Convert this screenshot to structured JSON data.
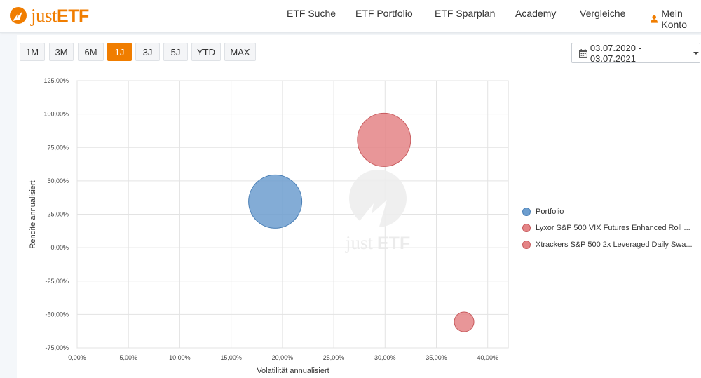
{
  "header": {
    "logo_text_light": "just",
    "logo_text_bold": "ETF",
    "nav": [
      "ETF Suche",
      "ETF Portfolio",
      "ETF Sparplan",
      "Academy",
      "Vergleiche",
      "Mein Konto"
    ]
  },
  "toolbar": {
    "periods": [
      "1M",
      "3M",
      "6M",
      "1J",
      "3J",
      "5J",
      "YTD",
      "MAX"
    ],
    "active_period": "1J",
    "date_range": "03.07.2020 - 03.07.2021"
  },
  "colors": {
    "brand": "#f07d00",
    "portfolio": "#6d9ecf",
    "etf": "#e48486"
  },
  "chart_data": {
    "type": "scatter",
    "xlabel": "Volatilität annualisiert",
    "ylabel": "Rendite annualisiert",
    "xlim": [
      0,
      42
    ],
    "ylim": [
      -75,
      125
    ],
    "x_ticks": [
      "0,00%",
      "5,00%",
      "10,00%",
      "15,00%",
      "20,00%",
      "25,00%",
      "30,00%",
      "35,00%",
      "40,00%"
    ],
    "y_ticks": [
      "125,00%",
      "100,00%",
      "75,00%",
      "50,00%",
      "25,00%",
      "0,00%",
      "-25,00%",
      "-50,00%",
      "-75,00%"
    ],
    "grid": true,
    "legend_position": "right",
    "series": [
      {
        "name": "Portfolio",
        "x": 19.3,
        "y": 34.5,
        "size": "large",
        "color_key": "portfolio"
      },
      {
        "name": "Lyxor S&P 500 VIX Futures Enhanced Roll ...",
        "x": 29.9,
        "y": 80.7,
        "size": "large",
        "color_key": "etf"
      },
      {
        "name": "Xtrackers S&P 500 2x Leveraged Daily Swa...",
        "x": 37.7,
        "y": -55.6,
        "size": "small",
        "color_key": "etf"
      }
    ]
  }
}
